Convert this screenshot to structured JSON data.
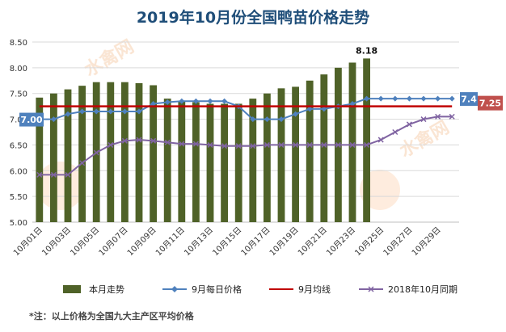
{
  "chart_data": {
    "type": "bar",
    "title": "2019年10月份全国鸭苗价格走势",
    "categories": [
      "10月01日",
      "10月02日",
      "10月03日",
      "10月04日",
      "10月05日",
      "10月06日",
      "10月07日",
      "10月08日",
      "10月09日",
      "10月10日",
      "10月11日",
      "10月12日",
      "10月13日",
      "10月14日",
      "10月15日",
      "10月16日",
      "10月17日",
      "10月18日",
      "10月19日",
      "10月20日",
      "10月21日",
      "10月22日",
      "10月23日",
      "10月24日",
      "10月25日",
      "10月26日",
      "10月27日",
      "10月28日",
      "10月29日",
      "10月30日"
    ],
    "tick_labels": [
      "10月01日",
      "10月03日",
      "10月05日",
      "10月07日",
      "10月09日",
      "10月11日",
      "10月13日",
      "10月15日",
      "10月17日",
      "10月19日",
      "10月21日",
      "10月23日",
      "10月25日",
      "10月27日",
      "10月29日"
    ],
    "y_ticks": [
      "5.00",
      "5.50",
      "6.00",
      "6.50",
      "7.00",
      "7.50",
      "8.00",
      "8.50"
    ],
    "ylim": [
      5.0,
      8.5
    ],
    "grid": true,
    "legend_position": "bottom",
    "series": [
      {
        "name": "本月走势",
        "type": "bar",
        "color": "#4f6228",
        "values": [
          7.42,
          7.5,
          7.58,
          7.65,
          7.72,
          7.72,
          7.72,
          7.7,
          7.66,
          7.4,
          7.36,
          7.33,
          7.3,
          7.3,
          7.3,
          7.4,
          7.5,
          7.6,
          7.63,
          7.75,
          7.87,
          8.0,
          8.1,
          8.18,
          null,
          null,
          null,
          null,
          null,
          null
        ]
      },
      {
        "name": "9月每日价格",
        "type": "line",
        "color": "#4f81bd",
        "values": [
          7.0,
          7.0,
          7.1,
          7.15,
          7.15,
          7.15,
          7.15,
          7.15,
          7.3,
          7.33,
          7.35,
          7.35,
          7.35,
          7.35,
          7.25,
          7.0,
          7.0,
          7.0,
          7.1,
          7.2,
          7.2,
          7.25,
          7.3,
          7.4,
          7.4,
          7.4,
          7.4,
          7.4,
          7.4,
          7.4
        ]
      },
      {
        "name": "9月均线",
        "type": "line",
        "color": "#c00000",
        "values": [
          7.25,
          7.25,
          7.25,
          7.25,
          7.25,
          7.25,
          7.25,
          7.25,
          7.25,
          7.25,
          7.25,
          7.25,
          7.25,
          7.25,
          7.25,
          7.25,
          7.25,
          7.25,
          7.25,
          7.25,
          7.25,
          7.25,
          7.25,
          7.25,
          7.25,
          7.25,
          7.25,
          7.25,
          7.25,
          7.25
        ]
      },
      {
        "name": "2018年10月同期",
        "type": "line",
        "color": "#8064a2",
        "values": [
          5.92,
          5.92,
          5.92,
          6.15,
          6.35,
          6.5,
          6.58,
          6.6,
          6.58,
          6.55,
          6.52,
          6.52,
          6.5,
          6.48,
          6.48,
          6.48,
          6.5,
          6.5,
          6.5,
          6.5,
          6.5,
          6.5,
          6.5,
          6.5,
          6.6,
          6.75,
          6.9,
          7.0,
          7.05,
          7.05
        ]
      }
    ],
    "annotations": {
      "peak_label": "8.18",
      "start_label": "7.00",
      "end_label_blue": "7.4",
      "end_label_red": "7.25"
    },
    "note": "*注：以上价格为全国九大主产区平均价格"
  },
  "colors": {
    "title": "#1f4e79",
    "grid": "#d9d9d9",
    "callout_blue": "#4f81bd",
    "callout_red": "#c0504d"
  },
  "watermark": {
    "text": "水禽网"
  }
}
